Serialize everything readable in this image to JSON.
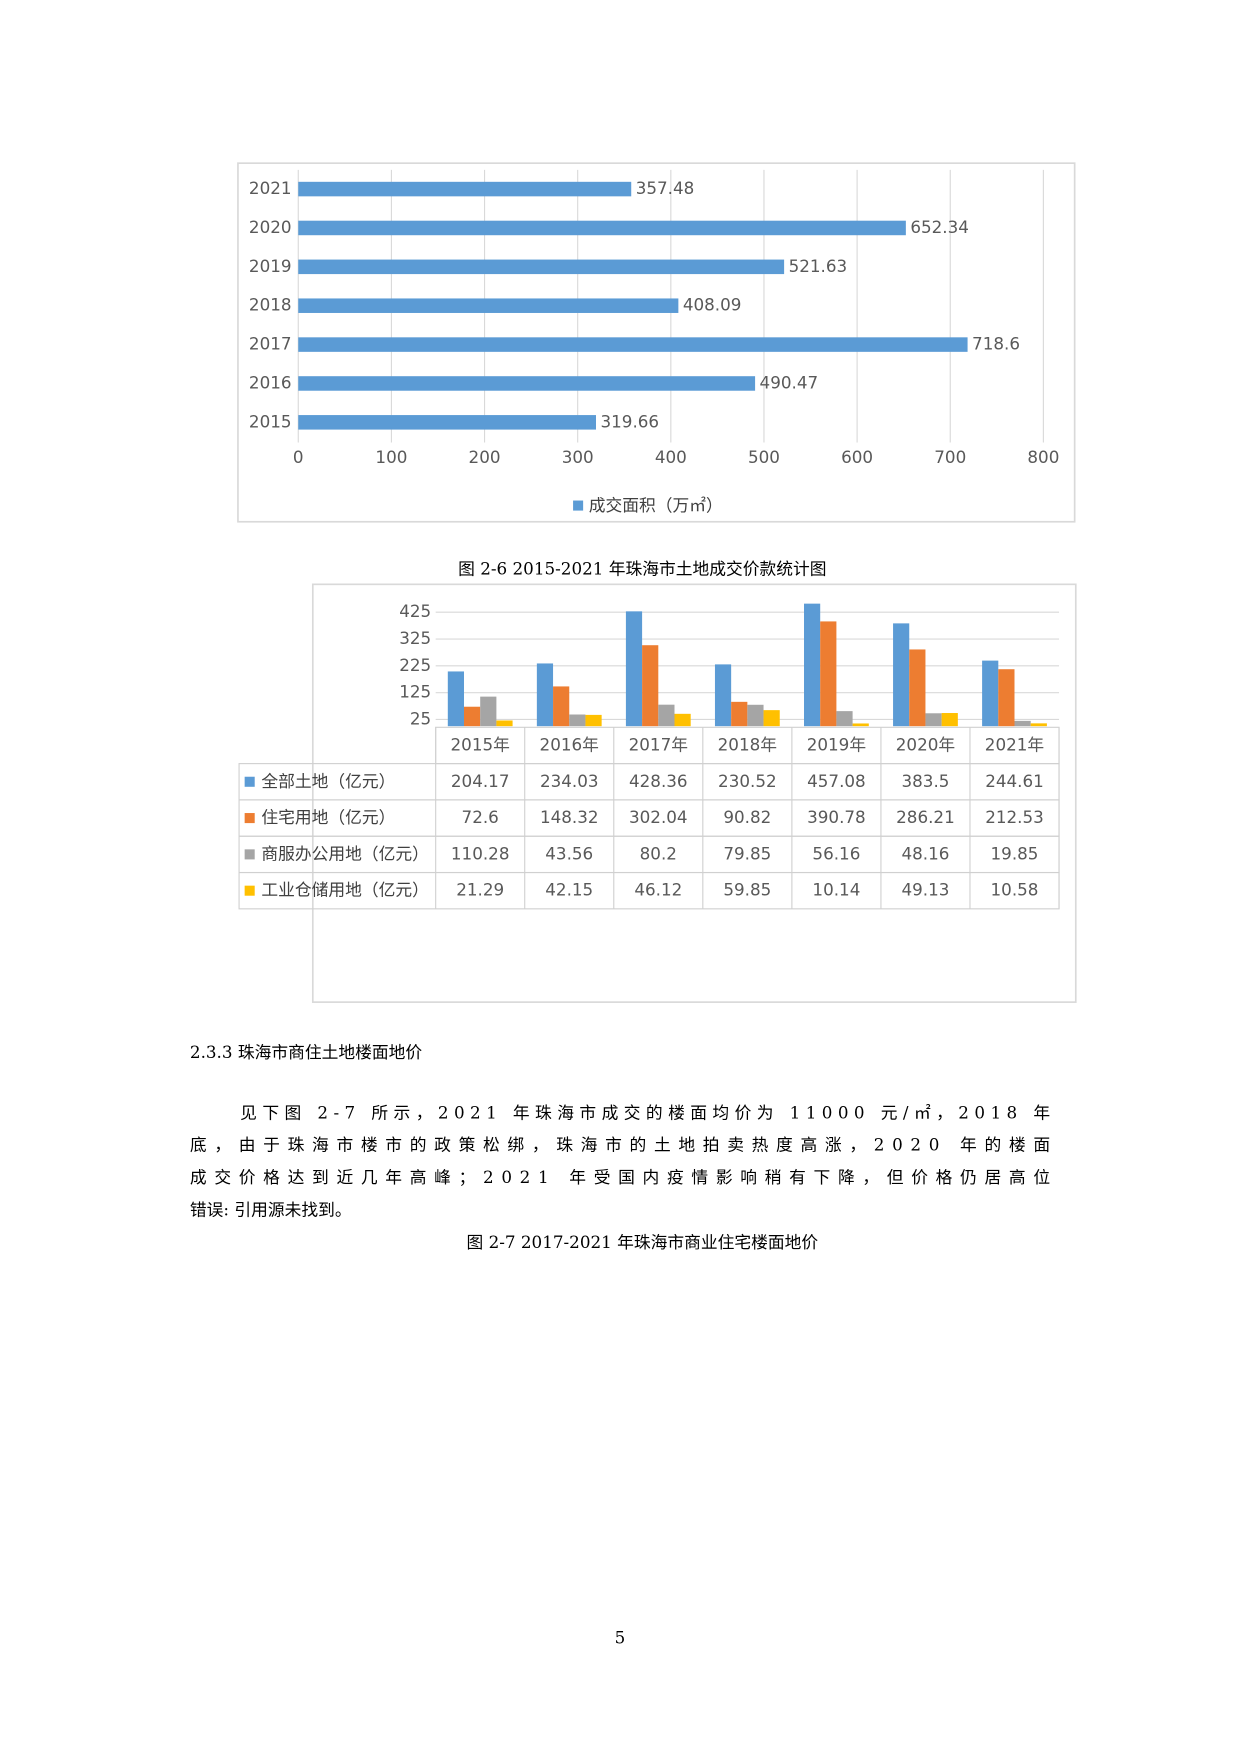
{
  "chart_data": [
    {
      "type": "hbar",
      "categories": [
        "2015",
        "2016",
        "2017",
        "2018",
        "2019",
        "2020",
        "2021"
      ],
      "series": [
        {
          "name": "成交面积（万㎡）",
          "color": "#5b9bd5",
          "values": [
            319.66,
            490.47,
            718.6,
            408.09,
            521.63,
            652.34,
            357.48
          ]
        }
      ],
      "xlim": [
        0,
        800
      ],
      "xticks": [
        0,
        100,
        200,
        300,
        400,
        500,
        600,
        700,
        800
      ],
      "grid": true,
      "legend": "bottom"
    },
    {
      "type": "bar",
      "categories": [
        "2015年",
        "2016年",
        "2017年",
        "2018年",
        "2019年",
        "2020年",
        "2021年"
      ],
      "series": [
        {
          "name": "全部土地（亿元）",
          "color": "#5b9bd5",
          "values": [
            204.17,
            234.03,
            428.36,
            230.52,
            457.08,
            383.5,
            244.61
          ]
        },
        {
          "name": "住宅用地（亿元）",
          "color": "#ed7d31",
          "values": [
            72.6,
            148.32,
            302.04,
            90.82,
            390.78,
            286.21,
            212.53
          ]
        },
        {
          "name": "商服办公用地（亿元）",
          "color": "#a5a5a5",
          "values": [
            110.28,
            43.56,
            80.2,
            79.85,
            56.16,
            48.16,
            19.85
          ]
        },
        {
          "name": "工业仓储用地（亿元）",
          "color": "#ffc000",
          "values": [
            21.29,
            42.15,
            46.12,
            59.85,
            10.14,
            49.13,
            10.58
          ]
        }
      ],
      "ylim": [
        0,
        475
      ],
      "yticks": [
        25,
        125,
        225,
        325,
        425
      ],
      "grid": true,
      "legend": "data-table"
    }
  ],
  "document": {
    "caption_1": "图 2-6 2015-2021 年珠海市土地成交价款统计图",
    "heading": "2.3.3 珠海市商住土地楼面地价",
    "paragraph": [
      "见下图 2-7 所示，2021 年珠海市成交的楼面均价为 11000 元/㎡，2018 年",
      "底，由于珠海市楼市的政策松绑，珠海市的土地拍卖热度高涨，2020 年的楼面",
      "成交价格达到近几年高峰；2021 年受国内疫情影响稍有下降，但价格仍居高位",
      "错误: 引用源未找到。"
    ],
    "caption_2": "图 2-7 2017-2021 年珠海市商业住宅楼面地价",
    "page_number": "5"
  }
}
